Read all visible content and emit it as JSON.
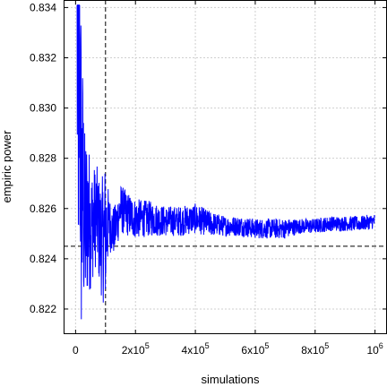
{
  "chart_data": {
    "type": "line",
    "xlabel": "simulations",
    "ylabel": "empiric power",
    "xlim": [
      -40000,
      1040000
    ],
    "ylim": [
      0.821,
      0.8343
    ],
    "grid": true,
    "colors": {
      "series": "#0000ff",
      "reference": "#000000",
      "grid": "#cfcfcf"
    },
    "x_ticks": [
      {
        "value": 0,
        "base": "0",
        "exp": ""
      },
      {
        "value": 200000,
        "base": "2x10",
        "exp": "5"
      },
      {
        "value": 400000,
        "base": "4x10",
        "exp": "5"
      },
      {
        "value": 600000,
        "base": "6x10",
        "exp": "5"
      },
      {
        "value": 800000,
        "base": "8x10",
        "exp": "5"
      },
      {
        "value": 1000000,
        "base": "10",
        "exp": "6"
      }
    ],
    "y_ticks": [
      0.822,
      0.824,
      0.826,
      0.828,
      0.83,
      0.832,
      0.834
    ],
    "y_tick_labels": [
      "0.822",
      "0.824",
      "0.826",
      "0.828",
      "0.830",
      "0.832",
      "0.834"
    ],
    "reference_lines": {
      "vertical_x": 100000,
      "horizontal_y": 0.8245
    },
    "series": [
      {
        "x": [
          5000,
          10000,
          15000,
          20000,
          25000,
          30000,
          40000,
          50000,
          60000,
          70000,
          80000,
          90000,
          100000,
          110000,
          120000,
          130000,
          150000,
          170000,
          200000,
          250000,
          300000,
          350000,
          400000,
          450000,
          500000,
          550000,
          600000,
          650000,
          700000,
          750000,
          800000,
          850000,
          900000,
          950000,
          1000000
        ],
        "y": [
          0.8338,
          0.8318,
          0.8302,
          0.8262,
          0.8268,
          0.8252,
          0.8258,
          0.8253,
          0.8255,
          0.8258,
          0.825,
          0.8248,
          0.825,
          0.8255,
          0.8252,
          0.8251,
          0.826,
          0.8258,
          0.8256,
          0.8256,
          0.8255,
          0.8255,
          0.8256,
          0.8254,
          0.8253,
          0.8253,
          0.8252,
          0.8252,
          0.8252,
          0.8253,
          0.8253,
          0.8254,
          0.8254,
          0.8254,
          0.8255
        ],
        "noise_amplitude": [
          0.012,
          0.01,
          0.008,
          0.0065,
          0.005,
          0.004,
          0.0035,
          0.0025,
          0.0022,
          0.002,
          0.0022,
          0.0025,
          0.003,
          0.0012,
          0.001,
          0.001,
          0.001,
          0.0009,
          0.0008,
          0.0007,
          0.0006,
          0.0006,
          0.0006,
          0.0005,
          0.0004,
          0.0004,
          0.0004,
          0.0004,
          0.0004,
          0.0003,
          0.0003,
          0.0003,
          0.0003,
          0.0003,
          0.0003
        ]
      }
    ]
  }
}
